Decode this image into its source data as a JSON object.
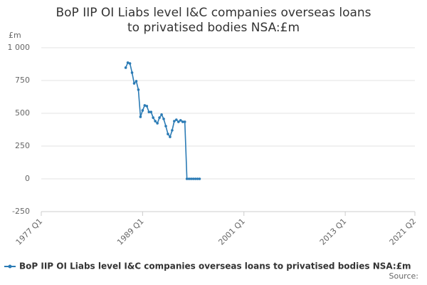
{
  "chart_data": {
    "type": "line",
    "title": "BoP IIP OI Liabs level I&C companies overseas loans to privatised bodies NSA:£m",
    "y_unit": "£m",
    "source": "Source:",
    "x": [
      "1987 Q1",
      "1987 Q2",
      "1987 Q3",
      "1987 Q4",
      "1988 Q1",
      "1988 Q2",
      "1988 Q3",
      "1988 Q4",
      "1989 Q1",
      "1989 Q2",
      "1989 Q3",
      "1989 Q4",
      "1990 Q1",
      "1990 Q2",
      "1990 Q3",
      "1990 Q4",
      "1991 Q1",
      "1991 Q2",
      "1991 Q3",
      "1991 Q4",
      "1992 Q1",
      "1992 Q2",
      "1992 Q3",
      "1992 Q4",
      "1993 Q1",
      "1993 Q2",
      "1993 Q3",
      "1993 Q4",
      "1994 Q1",
      "1994 Q2",
      "1994 Q3",
      "1994 Q4",
      "1995 Q1",
      "1995 Q2",
      "1995 Q3",
      "1995 Q4"
    ],
    "series": [
      {
        "name": "BoP IIP OI Liabs level I&C companies overseas loans to privatised bodies NSA:£m",
        "color": "#2b7bb5",
        "values": [
          848,
          886,
          880,
          810,
          728,
          745,
          680,
          473,
          522,
          560,
          555,
          510,
          510,
          467,
          440,
          424,
          467,
          490,
          457,
          402,
          342,
          320,
          370,
          440,
          451,
          435,
          446,
          435,
          435,
          0,
          0,
          0,
          0,
          0,
          0,
          0
        ]
      }
    ],
    "xlim": [
      "1977 Q1",
      "2021 Q2"
    ],
    "xticks": [
      "1977 Q1",
      "1989 Q1",
      "2001 Q1",
      "2013 Q1",
      "2021 Q2"
    ],
    "ylim": [
      -250,
      1000
    ],
    "yticks": [
      -250,
      0,
      250,
      500,
      750,
      {
        "value": 1000,
        "label": "1 000"
      }
    ],
    "grid": true,
    "legend": "bottom"
  }
}
